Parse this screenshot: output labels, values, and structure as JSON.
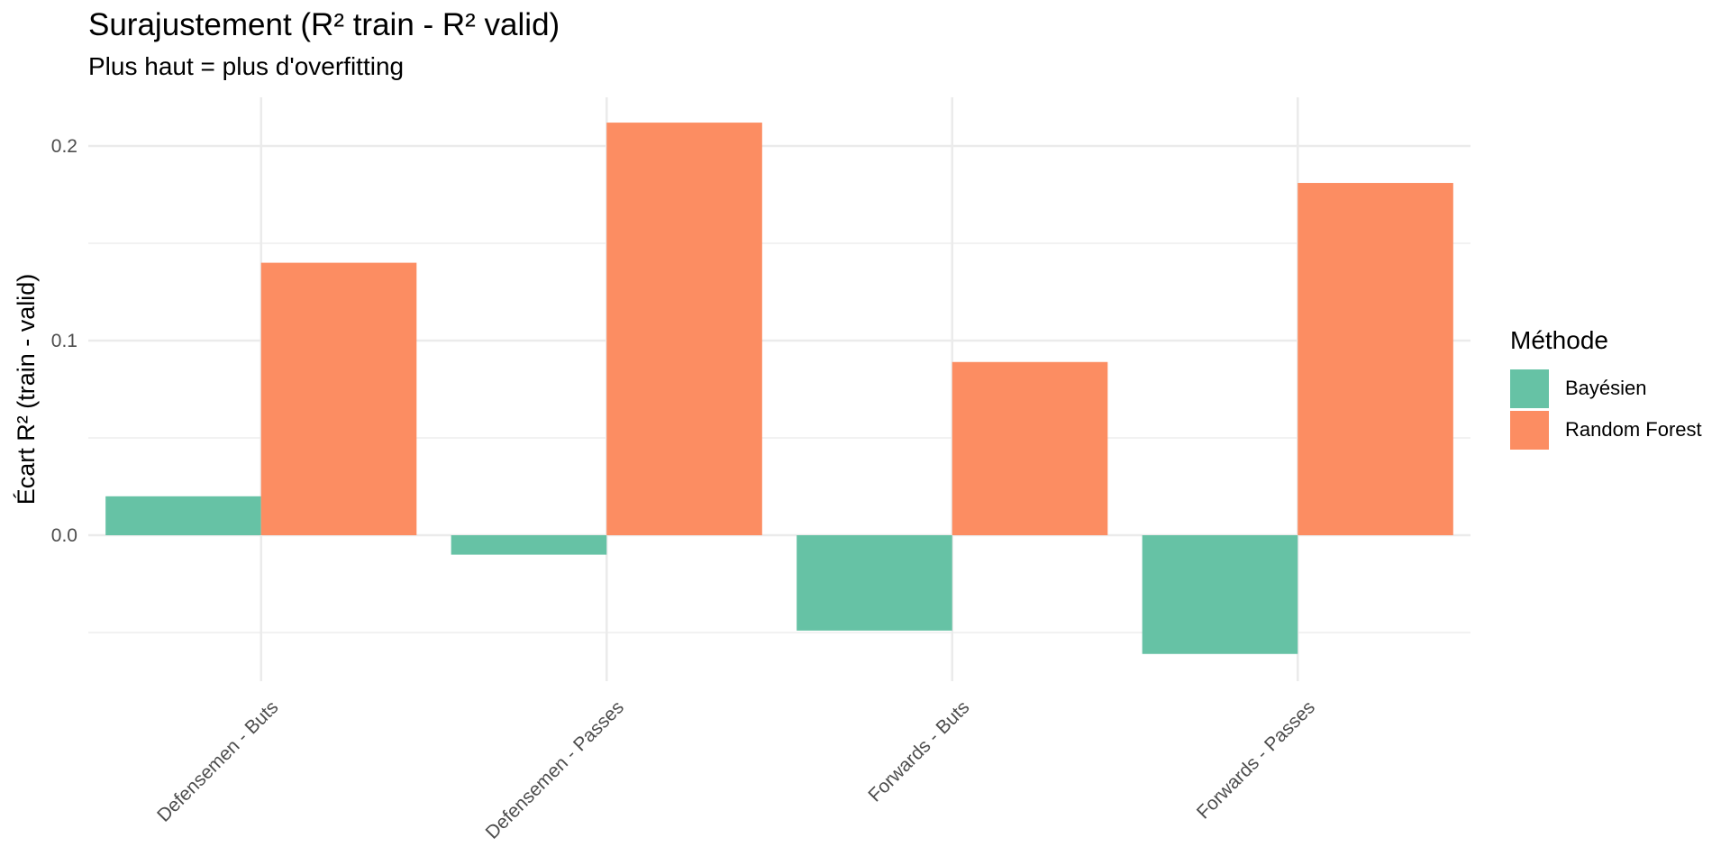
{
  "chart_data": {
    "type": "bar",
    "title": "Surajustement (R² train - R² valid)",
    "subtitle": "Plus haut = plus d'overfitting",
    "xlabel": "",
    "ylabel": "Écart R² (train - valid)",
    "categories": [
      "Defensemen - Buts",
      "Defensemen - Passes",
      "Forwards - Buts",
      "Forwards - Passes"
    ],
    "series": [
      {
        "name": "Bayésien",
        "color": "#66c2a5",
        "values": [
          0.02,
          -0.01,
          -0.049,
          -0.061
        ]
      },
      {
        "name": "Random Forest",
        "color": "#fc8d62",
        "values": [
          0.14,
          0.212,
          0.089,
          0.181
        ]
      }
    ],
    "ylim": [
      -0.075,
      0.225
    ],
    "yticks": [
      0.0,
      0.1,
      0.2
    ],
    "ytick_labels": [
      "0.0",
      "0.1",
      "0.2"
    ],
    "grid": true,
    "legend": {
      "title": "Méthode",
      "position": "right"
    }
  }
}
